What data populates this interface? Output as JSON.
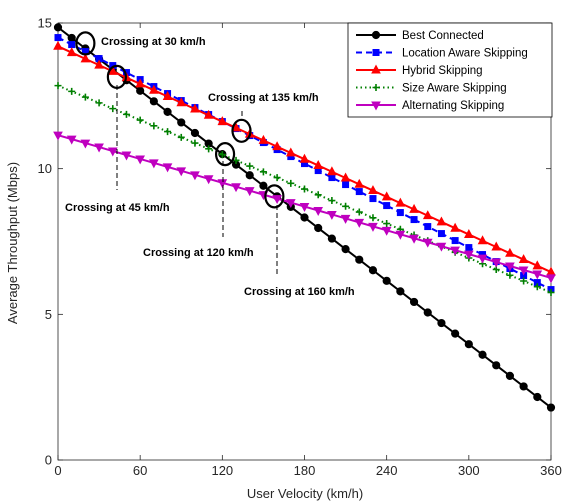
{
  "chart_data": {
    "type": "line",
    "xlabel": "User Velocity (km/h)",
    "ylabel": "Average Throughput (Mbps)",
    "xlim": [
      0,
      360
    ],
    "ylim": [
      0,
      15
    ],
    "xticks": [
      0,
      60,
      120,
      180,
      240,
      300,
      360
    ],
    "yticks": [
      0,
      5,
      10,
      15
    ],
    "grid": false,
    "legend_position": "top-right",
    "series": [
      {
        "name": "Best Connected",
        "color": "#000000",
        "line": "solid",
        "marker": "circle",
        "start": 14.85,
        "end": 1.8
      },
      {
        "name": "Location Aware Skipping",
        "color": "#0000ff",
        "line": "dashed",
        "marker": "square",
        "start": 14.5,
        "end": 5.85
      },
      {
        "name": "Hybrid Skipping",
        "color": "#ff0000",
        "line": "solid",
        "marker": "triangle-up",
        "start": 14.2,
        "end": 6.45
      },
      {
        "name": "Size Aware Skipping",
        "color": "#007f00",
        "line": "dotted",
        "marker": "plus",
        "start": 12.85,
        "end": 5.75
      },
      {
        "name": "Alternating Skipping",
        "color": "#bf00bf",
        "line": "solid",
        "marker": "triangle-down",
        "start": 11.15,
        "end": 6.25
      }
    ],
    "annotations": [
      {
        "text": "Crossing at 30 km/h",
        "x": 20,
        "y": 14.3
      },
      {
        "text": "Crossing at 45 km/h",
        "x": 43,
        "y": 13.15
      },
      {
        "text": "Crossing at 135 km/h",
        "x": 134,
        "y": 11.3
      },
      {
        "text": "Crossing at 120 km/h",
        "x": 122,
        "y": 10.5
      },
      {
        "text": "Crossing at 160 km/h",
        "x": 158,
        "y": 9.05
      }
    ]
  }
}
